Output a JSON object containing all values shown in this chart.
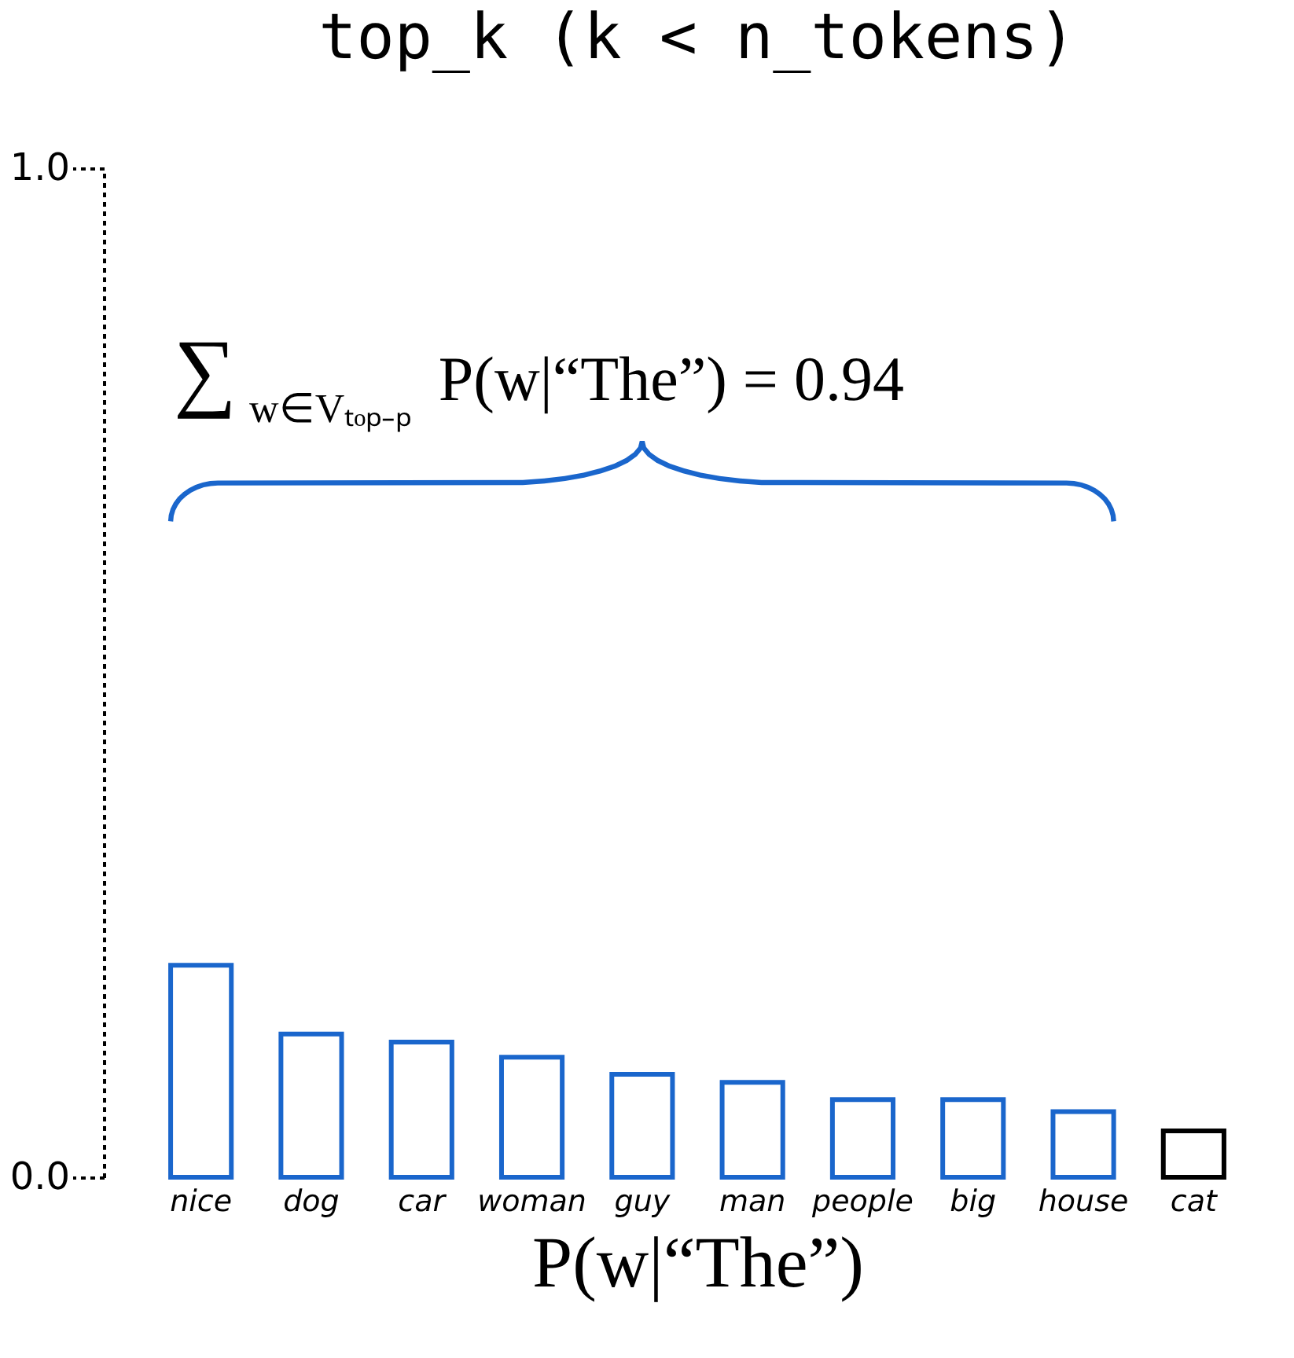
{
  "chart_data": {
    "type": "bar",
    "title": "top_k (k < n_tokens)",
    "xlabel": "P(w|“The”)",
    "categories": [
      "nice",
      "dog",
      "car",
      "woman",
      "guy",
      "man",
      "people",
      "big",
      "house",
      "cat"
    ],
    "values": [
      0.21,
      0.142,
      0.134,
      0.119,
      0.102,
      0.094,
      0.077,
      0.077,
      0.065,
      0.046
    ],
    "colors": [
      "#1a66cc",
      "#1a66cc",
      "#1a66cc",
      "#1a66cc",
      "#1a66cc",
      "#1a66cc",
      "#1a66cc",
      "#1a66cc",
      "#1a66cc",
      "#000000"
    ],
    "ylim": [
      0,
      1
    ],
    "yticks": [
      {
        "value": 0,
        "label": "0.0"
      },
      {
        "value": 1,
        "label": "1.0"
      }
    ],
    "annotations": [
      "∑$_{w∈Vₜₒₚ₋ₚ}$ P(w|“The”) = 0.94"
    ],
    "grid": false
  }
}
